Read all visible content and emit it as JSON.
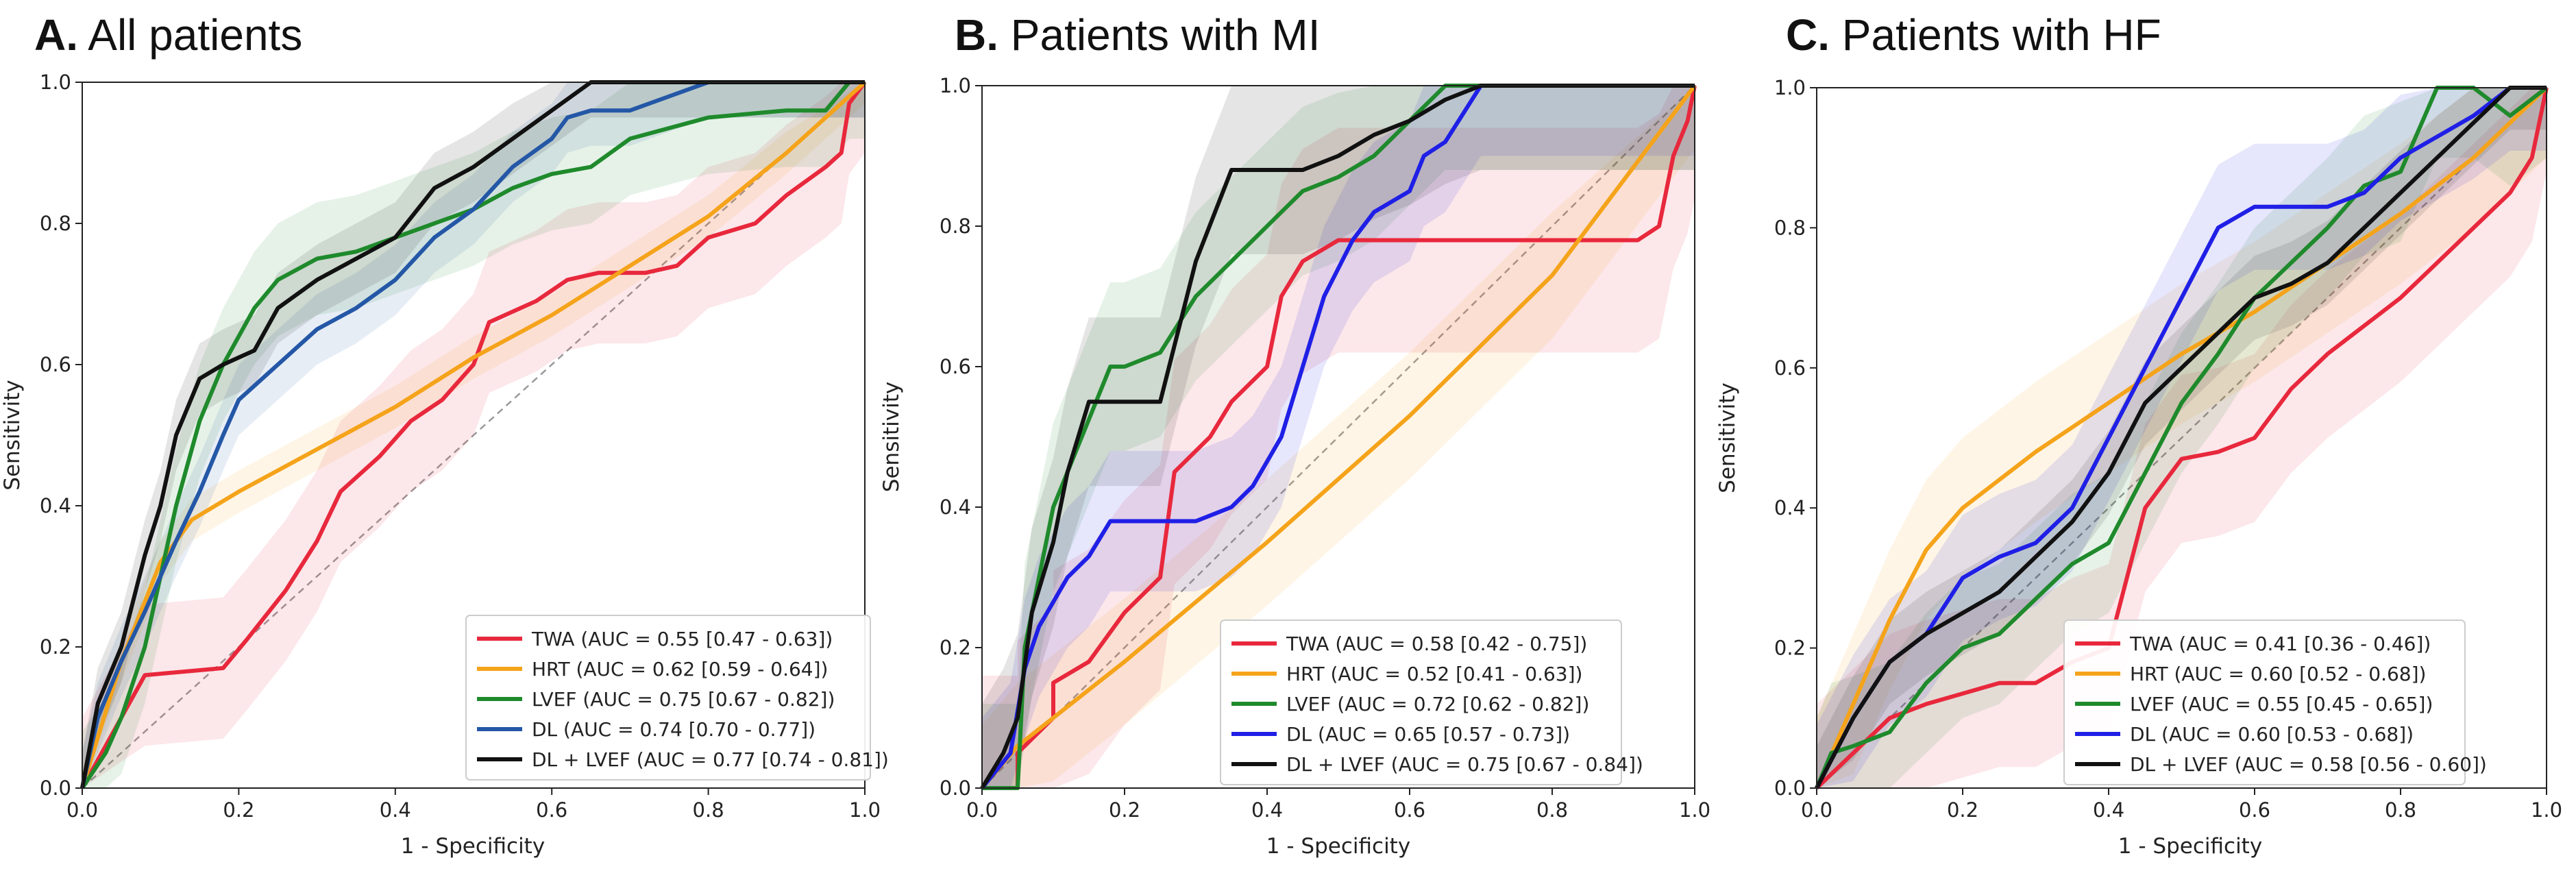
{
  "figure": {
    "colors": {
      "TWA": "#e8283c",
      "HRT": "#f5a31a",
      "LVEF": "#1f8a2c",
      "DL_A": "#2457a6",
      "DL_BC": "#1f1fe6",
      "DL_LVEF": "#111111"
    }
  },
  "chart_data": [
    {
      "type": "line",
      "panel_letter": "A.",
      "title": "All patients",
      "xlabel": "1 - Specificity",
      "ylabel": "Sensitivity",
      "xlim": [
        0,
        1
      ],
      "ylim": [
        0,
        1
      ],
      "xticks": [
        "0.0",
        "0.2",
        "0.4",
        "0.6",
        "0.8",
        "1.0"
      ],
      "yticks": [
        "0.0",
        "0.2",
        "0.4",
        "0.6",
        "0.8",
        "1.0"
      ],
      "legend_position": "bottom-right",
      "series": [
        {
          "name": "TWA",
          "label": "TWA (AUC = 0.55 [0.47 - 0.63])",
          "color": "#e8283c",
          "band": 0.1,
          "x": [
            0,
            0.08,
            0.18,
            0.21,
            0.26,
            0.3,
            0.33,
            0.38,
            0.42,
            0.46,
            0.5,
            0.52,
            0.58,
            0.62,
            0.66,
            0.72,
            0.76,
            0.8,
            0.86,
            0.9,
            0.95,
            0.97,
            0.98,
            1
          ],
          "y": [
            0,
            0.16,
            0.17,
            0.21,
            0.28,
            0.35,
            0.42,
            0.47,
            0.52,
            0.55,
            0.6,
            0.66,
            0.69,
            0.72,
            0.73,
            0.73,
            0.74,
            0.78,
            0.8,
            0.84,
            0.88,
            0.9,
            0.97,
            1
          ]
        },
        {
          "name": "HRT",
          "label": "HRT (AUC = 0.62 [0.59 - 0.64])",
          "color": "#f5a31a",
          "band": 0.03,
          "x": [
            0,
            0.05,
            0.1,
            0.14,
            0.2,
            0.3,
            0.4,
            0.5,
            0.6,
            0.7,
            0.8,
            0.9,
            1
          ],
          "y": [
            0,
            0.18,
            0.32,
            0.38,
            0.42,
            0.48,
            0.54,
            0.61,
            0.67,
            0.74,
            0.81,
            0.9,
            1
          ]
        },
        {
          "name": "LVEF",
          "label": "LVEF (AUC = 0.75 [0.67 - 0.82])",
          "color": "#1f8a2c",
          "band": 0.08,
          "x": [
            0,
            0.03,
            0.05,
            0.08,
            0.1,
            0.12,
            0.15,
            0.18,
            0.22,
            0.25,
            0.3,
            0.35,
            0.4,
            0.45,
            0.5,
            0.55,
            0.6,
            0.65,
            0.7,
            0.8,
            0.9,
            0.95,
            0.98,
            1
          ],
          "y": [
            0,
            0.05,
            0.1,
            0.2,
            0.3,
            0.4,
            0.52,
            0.6,
            0.68,
            0.72,
            0.75,
            0.76,
            0.78,
            0.8,
            0.82,
            0.85,
            0.87,
            0.88,
            0.92,
            0.95,
            0.96,
            0.96,
            1,
            1
          ]
        },
        {
          "name": "DL",
          "label": "DL (AUC = 0.74 [0.70 - 0.77])",
          "color": "#2457a6",
          "band": 0.05,
          "x": [
            0,
            0.02,
            0.05,
            0.08,
            0.1,
            0.12,
            0.15,
            0.18,
            0.2,
            0.25,
            0.3,
            0.35,
            0.4,
            0.45,
            0.5,
            0.55,
            0.6,
            0.62,
            0.65,
            0.7,
            0.8,
            0.95,
            1
          ],
          "y": [
            0,
            0.1,
            0.18,
            0.25,
            0.3,
            0.35,
            0.42,
            0.5,
            0.55,
            0.6,
            0.65,
            0.68,
            0.72,
            0.78,
            0.82,
            0.88,
            0.92,
            0.95,
            0.96,
            0.96,
            1,
            1,
            1
          ]
        },
        {
          "name": "DL + LVEF",
          "label": "DL + LVEF (AUC = 0.77 [0.74 - 0.81])",
          "color": "#111111",
          "band": 0.05,
          "x": [
            0,
            0.02,
            0.05,
            0.08,
            0.1,
            0.12,
            0.15,
            0.18,
            0.22,
            0.25,
            0.3,
            0.35,
            0.4,
            0.45,
            0.5,
            0.55,
            0.6,
            0.65,
            0.7,
            0.8,
            1
          ],
          "y": [
            0,
            0.12,
            0.2,
            0.33,
            0.4,
            0.5,
            0.58,
            0.6,
            0.62,
            0.68,
            0.72,
            0.75,
            0.78,
            0.85,
            0.88,
            0.92,
            0.96,
            1,
            1,
            1,
            1
          ]
        }
      ]
    },
    {
      "type": "line",
      "panel_letter": "B.",
      "title": "Patients with MI",
      "xlabel": "1 - Specificity",
      "ylabel": "Sensitivity",
      "xlim": [
        0,
        1
      ],
      "ylim": [
        0,
        1
      ],
      "xticks": [
        "0.0",
        "0.2",
        "0.4",
        "0.6",
        "0.8",
        "1.0"
      ],
      "yticks": [
        "0.0",
        "0.2",
        "0.4",
        "0.6",
        "0.8",
        "1.0"
      ],
      "legend_position": "bottom-right",
      "series": [
        {
          "name": "TWA",
          "label": "TWA (AUC = 0.58 [0.42 - 0.75])",
          "color": "#e8283c",
          "band": 0.16,
          "x": [
            0,
            0.05,
            0.05,
            0.1,
            0.1,
            0.15,
            0.2,
            0.25,
            0.27,
            0.32,
            0.35,
            0.4,
            0.42,
            0.45,
            0.5,
            0.55,
            0.6,
            0.7,
            0.8,
            0.92,
            0.95,
            0.97,
            0.99,
            1
          ],
          "y": [
            0,
            0,
            0.05,
            0.1,
            0.15,
            0.18,
            0.25,
            0.3,
            0.45,
            0.5,
            0.55,
            0.6,
            0.7,
            0.75,
            0.78,
            0.78,
            0.78,
            0.78,
            0.78,
            0.78,
            0.8,
            0.9,
            0.95,
            1
          ]
        },
        {
          "name": "HRT",
          "label": "HRT (AUC = 0.52 [0.41 - 0.63])",
          "color": "#f5a31a",
          "band": 0.09,
          "x": [
            0,
            0.05,
            0.1,
            0.2,
            0.4,
            0.6,
            0.8,
            1
          ],
          "y": [
            0,
            0.06,
            0.1,
            0.18,
            0.35,
            0.53,
            0.73,
            1
          ]
        },
        {
          "name": "LVEF",
          "label": "LVEF (AUC = 0.72 [0.62 - 0.82])",
          "color": "#1f8a2c",
          "band": 0.12,
          "x": [
            0,
            0.05,
            0.06,
            0.08,
            0.1,
            0.14,
            0.18,
            0.2,
            0.25,
            0.3,
            0.35,
            0.4,
            0.42,
            0.45,
            0.5,
            0.55,
            0.6,
            0.65,
            0.68,
            0.75,
            1
          ],
          "y": [
            0,
            0,
            0.2,
            0.3,
            0.4,
            0.5,
            0.6,
            0.6,
            0.62,
            0.7,
            0.75,
            0.8,
            0.82,
            0.85,
            0.87,
            0.9,
            0.95,
            1,
            1,
            1,
            1
          ]
        },
        {
          "name": "DL",
          "label": "DL (AUC = 0.65 [0.57 - 0.73])",
          "color": "#1f1fe6",
          "band": 0.1,
          "x": [
            0,
            0.04,
            0.06,
            0.08,
            0.12,
            0.15,
            0.18,
            0.22,
            0.26,
            0.3,
            0.35,
            0.38,
            0.42,
            0.45,
            0.48,
            0.52,
            0.55,
            0.6,
            0.62,
            0.65,
            0.7,
            0.78,
            0.85,
            1
          ],
          "y": [
            0,
            0.05,
            0.17,
            0.23,
            0.3,
            0.33,
            0.38,
            0.38,
            0.38,
            0.38,
            0.4,
            0.43,
            0.5,
            0.6,
            0.7,
            0.78,
            0.82,
            0.85,
            0.9,
            0.92,
            1,
            1,
            1,
            1
          ]
        },
        {
          "name": "DL + LVEF",
          "label": "DL + LVEF (AUC = 0.75 [0.67 - 0.84])",
          "color": "#111111",
          "band": 0.12,
          "x": [
            0,
            0.03,
            0.05,
            0.07,
            0.1,
            0.12,
            0.15,
            0.2,
            0.25,
            0.3,
            0.35,
            0.4,
            0.45,
            0.5,
            0.55,
            0.6,
            0.65,
            0.7,
            0.75,
            0.8,
            1
          ],
          "y": [
            0,
            0.05,
            0.1,
            0.25,
            0.35,
            0.45,
            0.55,
            0.55,
            0.55,
            0.75,
            0.88,
            0.88,
            0.88,
            0.9,
            0.93,
            0.95,
            0.98,
            1,
            1,
            1,
            1
          ]
        }
      ]
    },
    {
      "type": "line",
      "panel_letter": "C.",
      "title": "Patients with HF",
      "xlabel": "1 - Specificity",
      "ylabel": "Sensitivity",
      "xlim": [
        0,
        1
      ],
      "ylim": [
        0,
        1
      ],
      "xticks": [
        "0.0",
        "0.2",
        "0.4",
        "0.6",
        "0.8",
        "1.0"
      ],
      "yticks": [
        "0.0",
        "0.2",
        "0.4",
        "0.6",
        "0.8",
        "1.0"
      ],
      "legend_position": "bottom-right",
      "series": [
        {
          "name": "TWA",
          "label": "TWA (AUC = 0.41 [0.36 - 0.46])",
          "color": "#e8283c",
          "band": 0.12,
          "x": [
            0,
            0.02,
            0.05,
            0.1,
            0.15,
            0.25,
            0.3,
            0.35,
            0.4,
            0.42,
            0.45,
            0.5,
            0.55,
            0.6,
            0.65,
            0.7,
            0.75,
            0.8,
            0.85,
            0.9,
            0.95,
            0.98,
            1
          ],
          "y": [
            0,
            0.02,
            0.05,
            0.1,
            0.12,
            0.15,
            0.15,
            0.18,
            0.2,
            0.28,
            0.4,
            0.47,
            0.48,
            0.5,
            0.57,
            0.62,
            0.66,
            0.7,
            0.75,
            0.8,
            0.85,
            0.9,
            1
          ]
        },
        {
          "name": "HRT",
          "label": "HRT (AUC = 0.60 [0.52 - 0.68])",
          "color": "#f5a31a",
          "band": 0.1,
          "x": [
            0,
            0.05,
            0.1,
            0.15,
            0.2,
            0.3,
            0.4,
            0.5,
            0.6,
            0.7,
            0.8,
            0.9,
            1
          ],
          "y": [
            0,
            0.12,
            0.24,
            0.34,
            0.4,
            0.48,
            0.55,
            0.62,
            0.68,
            0.75,
            0.82,
            0.9,
            1
          ]
        },
        {
          "name": "LVEF",
          "label": "LVEF (AUC = 0.55 [0.45 - 0.65])",
          "color": "#1f8a2c",
          "band": 0.1,
          "x": [
            0,
            0.02,
            0.05,
            0.1,
            0.15,
            0.2,
            0.25,
            0.3,
            0.35,
            0.4,
            0.45,
            0.5,
            0.55,
            0.6,
            0.65,
            0.7,
            0.75,
            0.8,
            0.85,
            0.9,
            0.95,
            1
          ],
          "y": [
            0,
            0.05,
            0.06,
            0.08,
            0.15,
            0.2,
            0.22,
            0.27,
            0.32,
            0.35,
            0.45,
            0.55,
            0.62,
            0.7,
            0.75,
            0.8,
            0.86,
            0.88,
            1,
            1,
            0.96,
            1
          ]
        },
        {
          "name": "DL",
          "label": "DL (AUC = 0.60 [0.53 - 0.68])",
          "color": "#1f1fe6",
          "band": 0.09,
          "x": [
            0,
            0.05,
            0.1,
            0.15,
            0.2,
            0.25,
            0.3,
            0.35,
            0.4,
            0.45,
            0.5,
            0.55,
            0.6,
            0.65,
            0.7,
            0.75,
            0.8,
            0.85,
            0.9,
            0.95,
            1
          ],
          "y": [
            0,
            0.1,
            0.18,
            0.22,
            0.3,
            0.33,
            0.35,
            0.4,
            0.5,
            0.6,
            0.7,
            0.8,
            0.83,
            0.83,
            0.83,
            0.85,
            0.9,
            0.93,
            0.96,
            1,
            1
          ]
        },
        {
          "name": "DL + LVEF",
          "label": "DL + LVEF (AUC = 0.58 [0.56 - 0.60])",
          "color": "#111111",
          "band": 0.06,
          "x": [
            0,
            0.05,
            0.1,
            0.15,
            0.2,
            0.25,
            0.3,
            0.35,
            0.4,
            0.45,
            0.5,
            0.55,
            0.6,
            0.65,
            0.7,
            0.75,
            0.8,
            0.85,
            0.9,
            0.95,
            1
          ],
          "y": [
            0,
            0.1,
            0.18,
            0.22,
            0.25,
            0.28,
            0.33,
            0.38,
            0.45,
            0.55,
            0.6,
            0.65,
            0.7,
            0.72,
            0.75,
            0.8,
            0.85,
            0.9,
            0.95,
            1,
            1
          ]
        }
      ]
    }
  ]
}
